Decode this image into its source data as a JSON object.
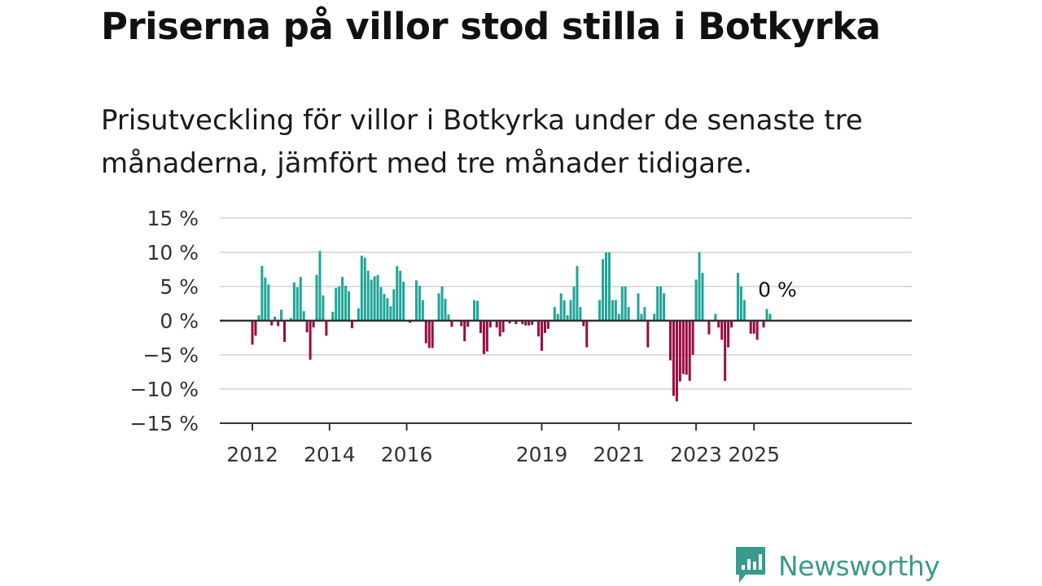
{
  "title": "Priserna på villor stod stilla i Botkyrka",
  "subtitle": "Prisutveckling för villor i Botkyrka under de senaste tre månaderna, jämfört med tre månader tidigare.",
  "logo_text": "Newsworthy",
  "colors": {
    "positive": "#1fa597",
    "negative": "#9b0c40",
    "axis": "#333333",
    "grid": "#dddddd",
    "logo": "#3a9a8c"
  },
  "chart_data": {
    "type": "bar",
    "x_start": "2012-01",
    "y_ticks": [
      15,
      10,
      5,
      0,
      -5,
      -10,
      -15
    ],
    "y_tick_labels": [
      "15 %",
      "10 %",
      "5 %",
      "0 %",
      "−5 %",
      "−10 %",
      "−15 %"
    ],
    "ylim": [
      -15,
      15
    ],
    "x_tick_labels": [
      "2012",
      "2014",
      "2016",
      "2019",
      "2021",
      "2023",
      "2025"
    ],
    "x_tick_dates": [
      "2012-01",
      "2014-01",
      "2016-01",
      "2019-07",
      "2021-07",
      "2023-07",
      "2025-01"
    ],
    "grid": true,
    "annotation": "0 %",
    "values": [
      -3.5,
      -2.2,
      0.8,
      8.0,
      6.3,
      5.3,
      -0.7,
      0.6,
      -0.8,
      1.6,
      -3.1,
      0,
      0.4,
      5.6,
      4.9,
      6.4,
      1.4,
      -1.7,
      -5.7,
      -1.0,
      6.7,
      10.2,
      3.7,
      -2.2,
      0,
      1.3,
      4.8,
      5.0,
      6.4,
      5.1,
      4.3,
      -1.1,
      0,
      1.8,
      9.5,
      9.2,
      7.3,
      6.0,
      6.5,
      6.7,
      4.9,
      3.9,
      3.3,
      2.1,
      4.6,
      8.0,
      7.3,
      5.7,
      0,
      -0.3,
      0,
      5.9,
      5.1,
      3.0,
      -3.3,
      -4.0,
      -4.0,
      0,
      4.0,
      5.0,
      3.2,
      0.9,
      -0.9,
      0,
      0,
      -0.8,
      -3.0,
      -0.9,
      0,
      3.0,
      2.9,
      -1.8,
      -4.9,
      -4.5,
      -1.0,
      0,
      -1.0,
      -2.3,
      -1.7,
      0,
      -0.4,
      0,
      -0.5,
      0,
      -0.5,
      -0.7,
      -0.7,
      -0.6,
      0,
      -2.3,
      -4.4,
      -1.8,
      -1.2,
      0,
      2.0,
      1.0,
      4.0,
      3.0,
      0.8,
      3.0,
      5.0,
      8.0,
      2.0,
      -0.8,
      -3.9,
      0,
      0,
      0,
      3.0,
      9.0,
      10.0,
      10.0,
      3.0,
      3.0,
      1.0,
      5.0,
      5.0,
      2.0,
      0,
      0,
      4.0,
      1.0,
      2.0,
      -3.9,
      0,
      1.0,
      5.0,
      5.0,
      4.0,
      0,
      -5.8,
      -11.0,
      -11.8,
      -8.9,
      -7.8,
      -7.9,
      -8.8,
      -5.0,
      6.0,
      10.0,
      7.0,
      0,
      -2.0,
      0,
      1.0,
      -1.0,
      -2.8,
      -8.8,
      -3.9,
      -1.0,
      0,
      7.0,
      5.0,
      3.0,
      0,
      -1.9,
      -1.9,
      -2.8,
      0,
      -1.0,
      1.7,
      1.0,
      0
    ]
  }
}
